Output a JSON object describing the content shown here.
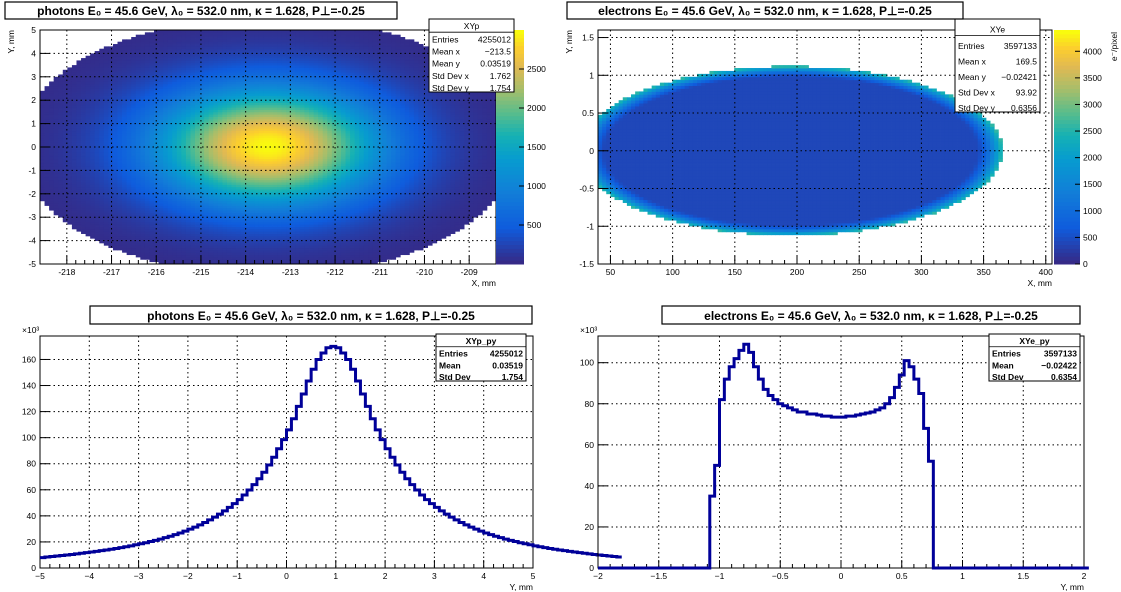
{
  "colors": {
    "palette": "parula",
    "hist_line": "#000099",
    "grid": "#000000"
  },
  "chart_data": [
    {
      "type": "heatmap",
      "title": "photons E₀ = 45.6 GeV, λ₀ = 532.0 nm, κ = 1.628, P⊥=-0.25",
      "xlabel": "X, mm",
      "ylabel": "Y, mm",
      "xlim": [
        -218.6,
        -208.4
      ],
      "ylim": [
        -5,
        5
      ],
      "xticks": [
        "-218",
        "-217",
        "-216",
        "-215",
        "-214",
        "-213",
        "-212",
        "-211",
        "-210",
        "-209"
      ],
      "yticks": [
        "-5",
        "-4",
        "-3",
        "-2",
        "-1",
        "0",
        "1",
        "2",
        "3",
        "4",
        "5"
      ],
      "colorbar": {
        "label": "",
        "range": [
          0,
          3000
        ],
        "ticks": [
          "500",
          "1000",
          "1500",
          "2000",
          "2500"
        ]
      },
      "distribution": {
        "shape": "gaussian",
        "center_x": -213.5,
        "center_y": 0.035,
        "sigma_x": 1.762,
        "sigma_y": 1.754,
        "peak": 3000
      },
      "stats": {
        "name": "XYp",
        "rows": [
          [
            "Entries",
            "4255012"
          ],
          [
            "Mean x",
            "−213.5"
          ],
          [
            "Mean y",
            "0.03519"
          ],
          [
            "Std Dev x",
            "1.762"
          ],
          [
            "Std Dev y",
            "1.754"
          ]
        ]
      },
      "grid": true
    },
    {
      "type": "heatmap",
      "title": "electrons E₀ = 45.6 GeV, λ₀ = 532.0 nm, κ = 1.628, P⊥=-0.25",
      "xlabel": "X, mm",
      "ylabel": "Y, mm",
      "xlim": [
        40,
        405
      ],
      "ylim": [
        -1.5,
        1.6
      ],
      "xticks": [
        "50",
        "100",
        "150",
        "200",
        "250",
        "300",
        "350",
        "400"
      ],
      "yticks": [
        "-1.5",
        "-1",
        "-0.5",
        "0",
        "0.5",
        "1",
        "1.5"
      ],
      "colorbar": {
        "label": "e⁻/pixel",
        "range": [
          0,
          4400
        ],
        "ticks": [
          "0",
          "500",
          "1000",
          "1500",
          "2000",
          "2500",
          "3000",
          "3500",
          "4000"
        ]
      },
      "distribution": {
        "shape": "ellipse",
        "x_range": [
          40,
          350
        ],
        "half_height": 1.12,
        "interior": 380,
        "edge": 2600
      },
      "stats": {
        "name": "XYe",
        "rows": [
          [
            "Entries",
            "3597133"
          ],
          [
            "Mean x",
            "169.5"
          ],
          [
            "Mean y",
            "−0.02421"
          ],
          [
            "Std Dev x",
            "93.92"
          ],
          [
            "Std Dev y",
            "0.6356"
          ]
        ]
      },
      "grid": true
    },
    {
      "type": "line",
      "title": "photons E₀ = 45.6 GeV, λ₀ = 532.0 nm, κ = 1.628, P⊥=-0.25",
      "xlabel": "Y, mm",
      "ylabel": "",
      "multiplier": "×10³",
      "xlim": [
        -5,
        5
      ],
      "ylim": [
        0,
        178
      ],
      "xticks": [
        "−5",
        "−4",
        "−3",
        "−2",
        "−1",
        "0",
        "1",
        "2",
        "3",
        "4",
        "5"
      ],
      "yticks": [
        "0",
        "20",
        "40",
        "60",
        "80",
        "100",
        "120",
        "140",
        "160"
      ],
      "bin_width": 0.1,
      "series": [
        {
          "values": [
            8.0,
            8.4,
            8.8,
            9.2,
            9.6,
            10.0,
            10.4,
            10.8,
            11.3,
            11.8,
            12.3,
            12.8,
            13.3,
            13.8,
            14.4,
            15.0,
            15.6,
            16.3,
            17.0,
            17.8,
            18.6,
            19.4,
            20.3,
            21.2,
            22.2,
            23.3,
            24.4,
            25.6,
            26.9,
            28.3,
            29.8,
            31.4,
            33.1,
            34.9,
            36.9,
            39.0,
            41.3,
            43.8,
            46.5,
            49.4,
            52.5,
            56.0,
            59.8,
            64.0,
            68.5,
            73.5,
            79.0,
            85.0,
            91.5,
            98.5,
            106.0,
            114.5,
            124.0,
            133.5,
            143.5,
            152.5,
            160.0,
            165.0,
            169.0,
            170.0,
            169.0,
            165.0,
            160.0,
            152.5,
            143.5,
            133.5,
            124.0,
            114.5,
            106.0,
            98.5,
            91.5,
            85.0,
            79.0,
            73.5,
            68.5,
            64.0,
            59.8,
            56.0,
            52.5,
            49.4,
            46.5,
            43.8,
            41.3,
            39.0,
            36.9,
            34.9,
            33.1,
            31.4,
            29.8,
            28.3,
            26.9,
            25.6,
            24.4,
            23.3,
            22.2,
            21.2,
            20.3,
            19.4,
            18.6,
            17.8,
            17.0,
            16.3,
            15.6,
            15.0,
            14.4,
            13.8,
            13.3,
            12.8,
            12.3,
            11.8,
            11.3,
            10.8,
            10.4,
            10.0,
            9.6,
            9.2,
            8.8,
            8.4
          ]
        }
      ],
      "stats": {
        "name": "XYp_py",
        "rows": [
          [
            "Entries",
            "4255012"
          ],
          [
            "Mean",
            "0.03519"
          ],
          [
            "Std Dev",
            "1.754"
          ]
        ]
      },
      "grid": true
    },
    {
      "type": "line",
      "title": "electrons E₀ = 45.6 GeV, λ₀ = 532.0 nm, κ = 1.628, P⊥=-0.25",
      "xlabel": "Y, mm",
      "ylabel": "",
      "multiplier": "×10³",
      "xlim": [
        -2,
        2
      ],
      "ylim": [
        0,
        113
      ],
      "xticks": [
        "−2",
        "−1.5",
        "−1",
        "−0.5",
        "0",
        "0.5",
        "1",
        "1.5",
        "2"
      ],
      "yticks": [
        "0",
        "20",
        "40",
        "60",
        "80",
        "100"
      ],
      "bin_width": 0.04,
      "series": [
        {
          "values": [
            0,
            0,
            0,
            0,
            0,
            0,
            0,
            0,
            0,
            0,
            0,
            0,
            0,
            0,
            0,
            0,
            0,
            0,
            0,
            0,
            0,
            0,
            0,
            35,
            50,
            82,
            92,
            98,
            102,
            106,
            109,
            105,
            98,
            92,
            87,
            84,
            82,
            80,
            79,
            78,
            77,
            76,
            76,
            75,
            75,
            74.5,
            74,
            74,
            73.5,
            73.5,
            73.5,
            74,
            74,
            74.5,
            75,
            75.5,
            76,
            77,
            78,
            80,
            83,
            88,
            94,
            101,
            98,
            92,
            85,
            68,
            52,
            0,
            0,
            0,
            0,
            0,
            0,
            0,
            0,
            0,
            0,
            0,
            0,
            0,
            0,
            0,
            0,
            0,
            0,
            0,
            0,
            0,
            0,
            0,
            0,
            0,
            0,
            0,
            0,
            0,
            0,
            0,
            0
          ]
        }
      ],
      "stats": {
        "name": "XYe_py",
        "rows": [
          [
            "Entries",
            "3597133"
          ],
          [
            "Mean",
            "−0.02422"
          ],
          [
            "Std Dev",
            "0.6354"
          ]
        ]
      },
      "grid": true
    }
  ]
}
